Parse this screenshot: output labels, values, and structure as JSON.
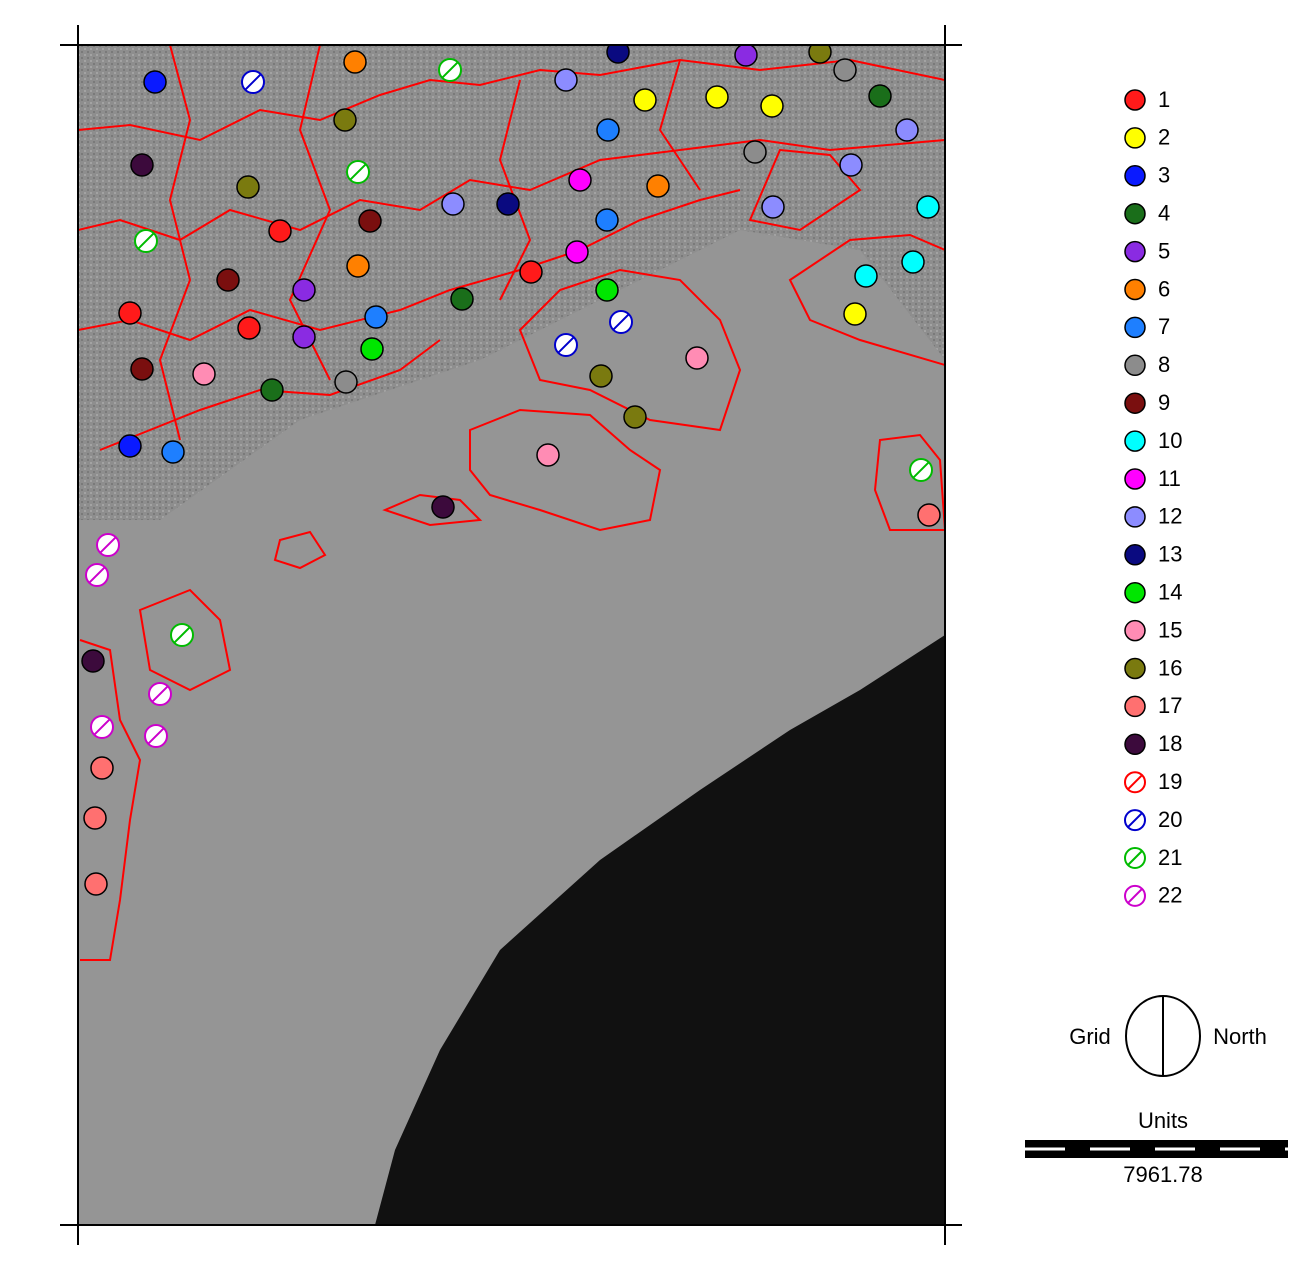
{
  "legend": {
    "items": [
      {
        "label": "1",
        "color": "#ff1a1a",
        "style": "filled"
      },
      {
        "label": "2",
        "color": "#ffff00",
        "style": "filled"
      },
      {
        "label": "3",
        "color": "#0a1aff",
        "style": "filled"
      },
      {
        "label": "4",
        "color": "#1a6e1a",
        "style": "filled"
      },
      {
        "label": "5",
        "color": "#8a2be2",
        "style": "filled"
      },
      {
        "label": "6",
        "color": "#ff8000",
        "style": "filled"
      },
      {
        "label": "7",
        "color": "#1e7fff",
        "style": "filled"
      },
      {
        "label": "8",
        "color": "#8c8c8c",
        "style": "filled"
      },
      {
        "label": "9",
        "color": "#7a0f0f",
        "style": "filled"
      },
      {
        "label": "10",
        "color": "#00ffff",
        "style": "filled"
      },
      {
        "label": "11",
        "color": "#ff00ff",
        "style": "filled"
      },
      {
        "label": "12",
        "color": "#8c8cff",
        "style": "filled"
      },
      {
        "label": "13",
        "color": "#0a0a80",
        "style": "filled"
      },
      {
        "label": "14",
        "color": "#00e600",
        "style": "filled"
      },
      {
        "label": "15",
        "color": "#ff8cb4",
        "style": "filled"
      },
      {
        "label": "16",
        "color": "#7a7a0f",
        "style": "filled"
      },
      {
        "label": "17",
        "color": "#ff7070",
        "style": "filled"
      },
      {
        "label": "18",
        "color": "#3c0a3c",
        "style": "filled"
      },
      {
        "label": "19",
        "color": "#ff0000",
        "style": "hatched"
      },
      {
        "label": "20",
        "color": "#0000cc",
        "style": "hatched"
      },
      {
        "label": "21",
        "color": "#00bb00",
        "style": "hatched"
      },
      {
        "label": "22",
        "color": "#cc00cc",
        "style": "hatched"
      }
    ]
  },
  "north_arrow": {
    "left": "Grid",
    "right": "North"
  },
  "scale_bar": {
    "title": "Units",
    "label": "7961.78"
  }
}
